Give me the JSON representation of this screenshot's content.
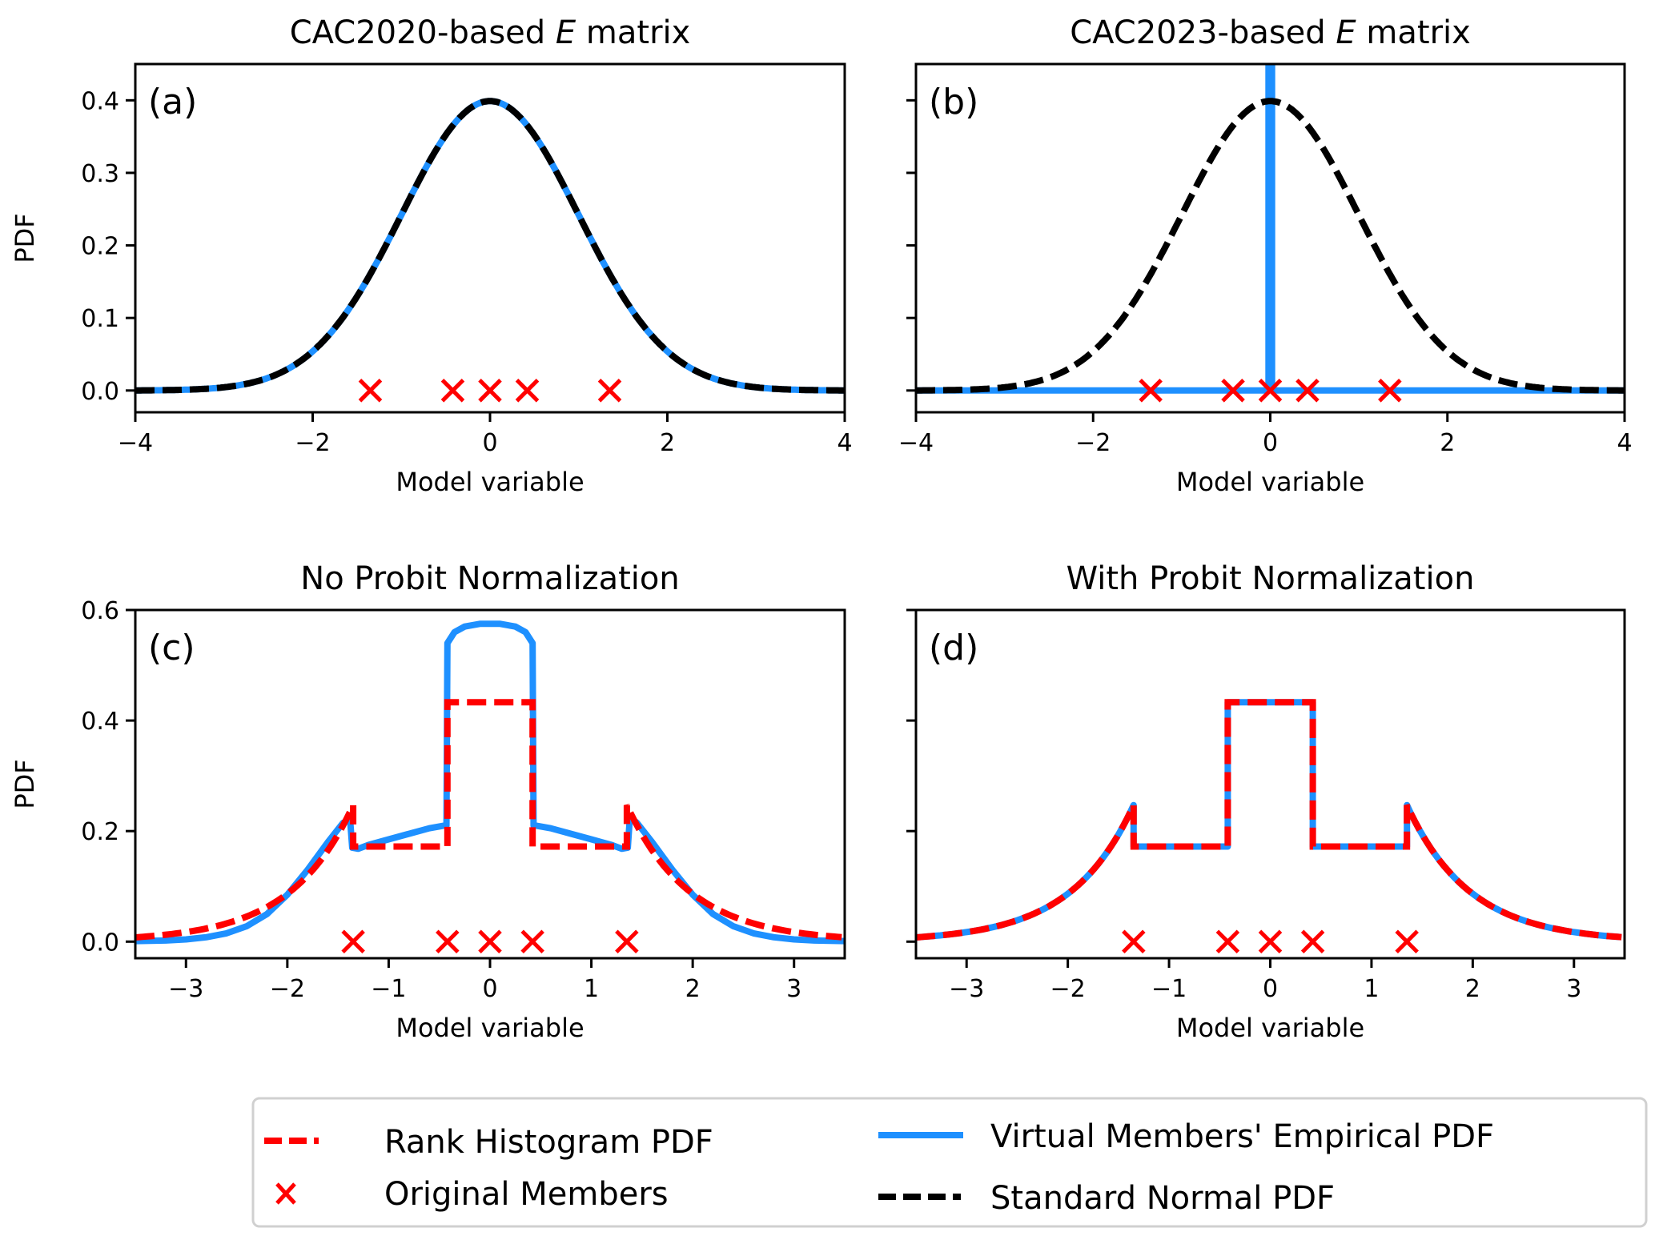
{
  "chart_data": [
    {
      "id": "a",
      "type": "line",
      "title_prefix": "CAC2020-based ",
      "title_italic": "E",
      "title_suffix": " matrix",
      "panel_tag": "(a)",
      "xlabel": "Model variable",
      "ylabel": "PDF",
      "xlim": [
        -4,
        4
      ],
      "ylim": [
        -0.03,
        0.45
      ],
      "xticks": [
        -4,
        -2,
        0,
        2,
        4
      ],
      "yticks": [
        0.0,
        0.1,
        0.2,
        0.3,
        0.4
      ],
      "show_ytick_labels": true,
      "series": [
        {
          "name": "Virtual Members' Empirical PDF",
          "kind": "normal",
          "mu": 0,
          "sigma": 1,
          "color": "#1e90ff",
          "style": "solid"
        },
        {
          "name": "Standard Normal PDF",
          "kind": "normal",
          "mu": 0,
          "sigma": 1,
          "color": "#000000",
          "style": "dashed"
        }
      ],
      "members": [
        -1.35,
        -0.42,
        0.0,
        0.42,
        1.35
      ]
    },
    {
      "id": "b",
      "type": "line",
      "title_prefix": "CAC2023-based ",
      "title_italic": "E",
      "title_suffix": " matrix",
      "panel_tag": "(b)",
      "xlabel": "Model variable",
      "ylabel": "",
      "xlim": [
        -4,
        4
      ],
      "ylim": [
        -0.03,
        0.45
      ],
      "xticks": [
        -4,
        -2,
        0,
        2,
        4
      ],
      "yticks": [
        0.0,
        0.1,
        0.2,
        0.3,
        0.4
      ],
      "show_ytick_labels": false,
      "series": [
        {
          "name": "Virtual Members' Empirical PDF",
          "kind": "points",
          "color": "#1e90ff",
          "style": "solid",
          "x": [
            -4,
            -0.02,
            -0.02,
            0.02,
            0.02,
            4
          ],
          "y": [
            0,
            0,
            0.5,
            0.5,
            0,
            0
          ]
        },
        {
          "name": "Standard Normal PDF",
          "kind": "normal",
          "mu": 0,
          "sigma": 1,
          "color": "#000000",
          "style": "dashed"
        }
      ],
      "members": [
        -1.35,
        -0.42,
        0.0,
        0.42,
        1.35
      ]
    },
    {
      "id": "c",
      "type": "line",
      "title": "No Probit Normalization",
      "panel_tag": "(c)",
      "xlabel": "Model variable",
      "ylabel": "PDF",
      "xlim": [
        -3.5,
        3.5
      ],
      "ylim": [
        -0.03,
        0.6
      ],
      "xticks": [
        -3,
        -2,
        -1,
        0,
        1,
        2,
        3
      ],
      "yticks": [
        0.0,
        0.2,
        0.4,
        0.6
      ],
      "show_ytick_labels": true,
      "series": [
        {
          "name": "Virtual Members' Empirical PDF",
          "kind": "points",
          "color": "#1e90ff",
          "style": "solid",
          "x": [
            -3.5,
            -3.2,
            -3.0,
            -2.8,
            -2.6,
            -2.4,
            -2.2,
            -2.0,
            -1.8,
            -1.6,
            -1.45,
            -1.38,
            -1.36,
            -1.3,
            -1.2,
            -1.0,
            -0.8,
            -0.6,
            -0.45,
            -0.43,
            -0.42,
            -0.35,
            -0.25,
            -0.1,
            0.0,
            0.1,
            0.25,
            0.35,
            0.42,
            0.43,
            0.45,
            0.6,
            0.8,
            1.0,
            1.2,
            1.3,
            1.36,
            1.38,
            1.45,
            1.6,
            1.8,
            2.0,
            2.2,
            2.4,
            2.6,
            2.8,
            3.0,
            3.2,
            3.5
          ],
          "y": [
            0.001,
            0.002,
            0.004,
            0.008,
            0.015,
            0.028,
            0.05,
            0.085,
            0.13,
            0.18,
            0.215,
            0.22,
            0.17,
            0.168,
            0.175,
            0.185,
            0.195,
            0.205,
            0.21,
            0.21,
            0.54,
            0.56,
            0.57,
            0.575,
            0.575,
            0.575,
            0.57,
            0.56,
            0.54,
            0.21,
            0.21,
            0.205,
            0.195,
            0.185,
            0.175,
            0.168,
            0.17,
            0.225,
            0.215,
            0.18,
            0.13,
            0.085,
            0.05,
            0.028,
            0.015,
            0.008,
            0.004,
            0.002,
            0.001
          ]
        },
        {
          "name": "Rank Histogram PDF",
          "kind": "rankhist",
          "color": "#ff0000",
          "style": "dashed",
          "members": [
            -1.35,
            -0.42,
            0.0,
            0.42,
            1.35
          ],
          "inner": [
            0.172,
            0.433,
            0.433,
            0.172
          ],
          "tail_peak": 0.247
        }
      ],
      "members": [
        -1.35,
        -0.42,
        0.0,
        0.42,
        1.35
      ]
    },
    {
      "id": "d",
      "type": "line",
      "title": "With Probit Normalization",
      "panel_tag": "(d)",
      "xlabel": "Model variable",
      "ylabel": "",
      "xlim": [
        -3.5,
        3.5
      ],
      "ylim": [
        -0.03,
        0.6
      ],
      "xticks": [
        -3,
        -2,
        -1,
        0,
        1,
        2,
        3
      ],
      "yticks": [
        0.0,
        0.2,
        0.4,
        0.6
      ],
      "show_ytick_labels": false,
      "series": [
        {
          "name": "Virtual Members' Empirical PDF",
          "kind": "rankhist",
          "color": "#1e90ff",
          "style": "solid",
          "members": [
            -1.35,
            -0.42,
            0.0,
            0.42,
            1.35
          ],
          "inner": [
            0.172,
            0.433,
            0.433,
            0.172
          ],
          "tail_peak": 0.247
        },
        {
          "name": "Rank Histogram PDF",
          "kind": "rankhist",
          "color": "#ff0000",
          "style": "dashed",
          "members": [
            -1.35,
            -0.42,
            0.0,
            0.42,
            1.35
          ],
          "inner": [
            0.172,
            0.433,
            0.433,
            0.172
          ],
          "tail_peak": 0.247
        }
      ],
      "members": [
        -1.35,
        -0.42,
        0.0,
        0.42,
        1.35
      ]
    }
  ],
  "legend": {
    "placement": "bottom",
    "entries": [
      {
        "label": "Rank Histogram PDF",
        "color": "#ff0000",
        "marker": "dashed-line"
      },
      {
        "label": "Original Members",
        "color": "#ff0000",
        "marker": "x"
      },
      {
        "label": "Virtual Members' Empirical PDF",
        "color": "#1e90ff",
        "marker": "solid-line"
      },
      {
        "label": "Standard Normal PDF",
        "color": "#000000",
        "marker": "dashed-line"
      }
    ]
  },
  "colors": {
    "empirical": "#1e90ff",
    "rank_hist": "#ff0000",
    "normal": "#000000",
    "members": "#ff0000"
  }
}
